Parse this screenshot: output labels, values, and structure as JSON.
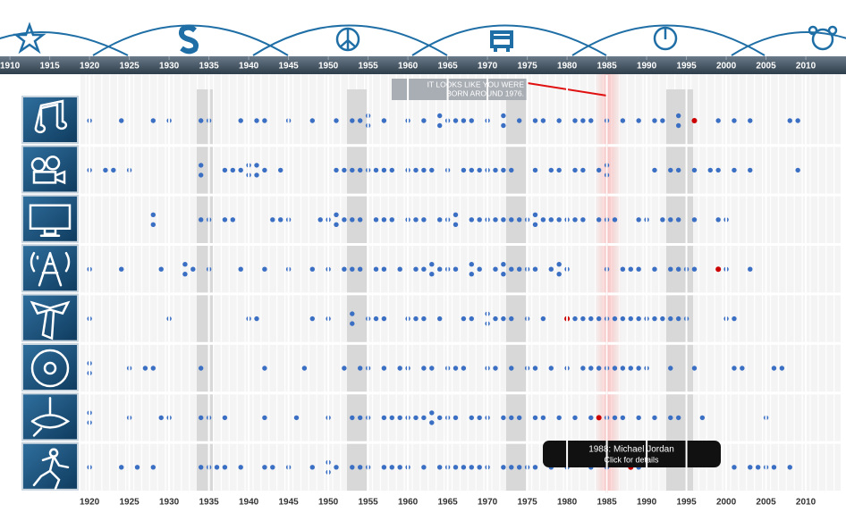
{
  "xlim": [
    1908.75,
    2015.05
  ],
  "top_ticks": [
    1910,
    1915,
    1920,
    1925,
    1930,
    1935,
    1940,
    1945,
    1950,
    1955,
    1960,
    1965,
    1970,
    1975,
    1980,
    1985,
    1990,
    1995,
    2000,
    2005,
    2010
  ],
  "bottom_ticks": [
    1920,
    1925,
    1930,
    1935,
    1940,
    1945,
    1950,
    1955,
    1960,
    1965,
    1970,
    1975,
    1980,
    1985,
    1990,
    1995,
    2000,
    2005,
    2010
  ],
  "marker_year": 1985,
  "dot_color": "#3a6fc4",
  "highlight_color": "#cc0000",
  "callout": {
    "line1": "IT LOOKS LIKE YOU WERE",
    "line2": "BORN AROUND 1976."
  },
  "tooltip": {
    "title": "1988: Michael  Jordan",
    "subtitle": "Click for details"
  },
  "rows": [
    {
      "events": [
        1920,
        1924,
        1928,
        1930,
        1934,
        1935,
        1939,
        1941,
        1942,
        1945,
        1948,
        1951,
        1953,
        1954,
        1955,
        1955,
        1957,
        1960,
        1962,
        1964,
        1964,
        1965,
        1966,
        1967,
        1968,
        1970,
        1972,
        1972,
        1974,
        1976,
        1977,
        1979,
        1981,
        1982,
        1983,
        1985,
        1987,
        1989,
        1991,
        1992,
        1994,
        1994,
        1999,
        2001,
        2003,
        2008,
        2009
      ],
      "highlight": 1996
    },
    {
      "events": [
        1920,
        1922,
        1923,
        1925,
        1934,
        1934,
        1937,
        1938,
        1939,
        1940,
        1940,
        1941,
        1941,
        1942,
        1944,
        1951,
        1952,
        1953,
        1954,
        1955,
        1956,
        1957,
        1958,
        1960,
        1961,
        1962,
        1963,
        1965,
        1967,
        1968,
        1969,
        1970,
        1971,
        1972,
        1973,
        1976,
        1978,
        1979,
        1981,
        1982,
        1984,
        1985,
        1985,
        1991,
        1993,
        1994,
        1996,
        1998,
        1999,
        2001,
        2003,
        2009
      ],
      "highlight": null
    },
    {
      "events": [
        1928,
        1928,
        1934,
        1935,
        1937,
        1938,
        1943,
        1944,
        1945,
        1949,
        1950,
        1951,
        1951,
        1952,
        1953,
        1954,
        1956,
        1957,
        1958,
        1960,
        1961,
        1962,
        1964,
        1965,
        1966,
        1966,
        1968,
        1969,
        1970,
        1971,
        1972,
        1973,
        1974,
        1975,
        1976,
        1976,
        1977,
        1978,
        1979,
        1980,
        1981,
        1982,
        1984,
        1985,
        1986,
        1989,
        1990,
        1992,
        1993,
        1994,
        1996,
        1999,
        2000
      ],
      "highlight": null
    },
    {
      "events": [
        1920,
        1924,
        1929,
        1932,
        1932,
        1933,
        1935,
        1939,
        1942,
        1945,
        1948,
        1950,
        1952,
        1953,
        1954,
        1956,
        1957,
        1959,
        1961,
        1962,
        1963,
        1963,
        1964,
        1965,
        1966,
        1968,
        1968,
        1969,
        1971,
        1972,
        1972,
        1973,
        1974,
        1975,
        1976,
        1978,
        1979,
        1979,
        1980,
        1985,
        1987,
        1988,
        1989,
        1991,
        1993,
        1994,
        1995,
        1996,
        2000,
        2003
      ],
      "highlight": 1999
    },
    {
      "events": [
        1920,
        1930,
        1940,
        1941,
        1948,
        1950,
        1953,
        1953,
        1955,
        1956,
        1957,
        1960,
        1961,
        1962,
        1964,
        1967,
        1968,
        1970,
        1970,
        1971,
        1972,
        1973,
        1975,
        1977,
        1981,
        1982,
        1983,
        1984,
        1985,
        1986,
        1987,
        1988,
        1989,
        1990,
        1991,
        1992,
        1993,
        1994,
        1995,
        2000,
        2001
      ],
      "highlight": 1980
    },
    {
      "events": [
        1920,
        1920,
        1925,
        1927,
        1928,
        1934,
        1942,
        1947,
        1952,
        1954,
        1955,
        1957,
        1959,
        1960,
        1962,
        1963,
        1965,
        1966,
        1967,
        1970,
        1971,
        1973,
        1975,
        1976,
        1978,
        1980,
        1982,
        1983,
        1984,
        1985,
        1986,
        1987,
        1988,
        1989,
        1990,
        1993,
        1996,
        2001,
        2002,
        2006,
        2007
      ],
      "highlight": null
    },
    {
      "events": [
        1920,
        1920,
        1925,
        1929,
        1930,
        1934,
        1935,
        1937,
        1942,
        1946,
        1950,
        1953,
        1954,
        1955,
        1957,
        1958,
        1959,
        1960,
        1961,
        1962,
        1963,
        1963,
        1964,
        1965,
        1966,
        1968,
        1969,
        1970,
        1972,
        1973,
        1974,
        1976,
        1977,
        1979,
        1981,
        1983,
        1985,
        1986,
        1987,
        1989,
        1991,
        1993,
        1994,
        1997,
        2005
      ],
      "highlight": 1984
    },
    {
      "events": [
        1920,
        1924,
        1926,
        1928,
        1934,
        1935,
        1936,
        1937,
        1939,
        1942,
        1943,
        1945,
        1948,
        1950,
        1950,
        1951,
        1953,
        1954,
        1955,
        1957,
        1958,
        1959,
        1960,
        1962,
        1964,
        1965,
        1966,
        1967,
        1968,
        1969,
        1970,
        1972,
        1973,
        1974,
        1975,
        1976,
        1978,
        1980,
        1983,
        1985,
        1989,
        2001,
        2003,
        2004,
        2005,
        2006,
        2008
      ],
      "highlight": 1988
    }
  ]
}
